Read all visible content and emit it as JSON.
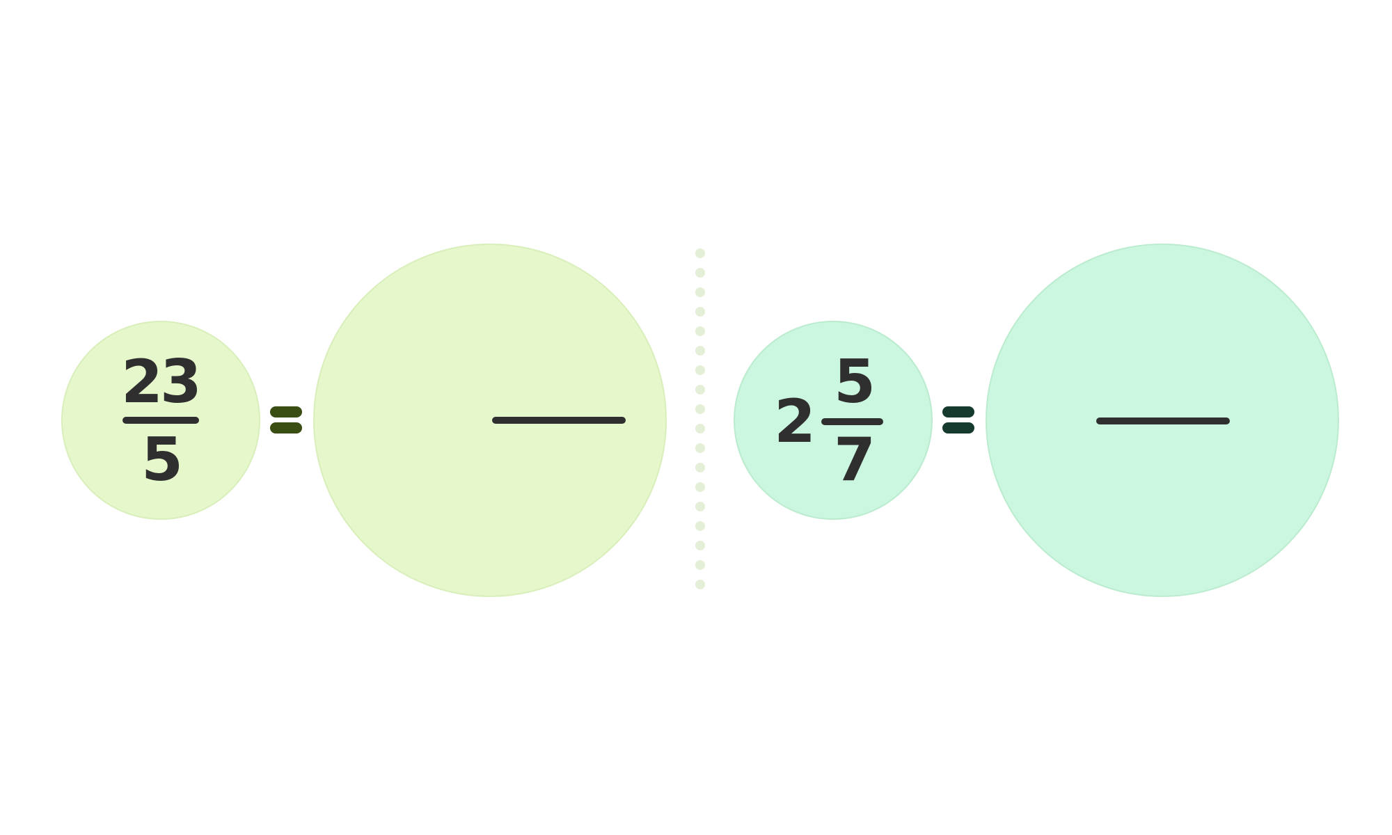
{
  "left_problem": {
    "numerator": "23",
    "denominator": "5"
  },
  "right_problem": {
    "whole": "2",
    "numerator": "5",
    "denominator": "7"
  },
  "colors": {
    "left_circle": "#e6f7cb",
    "right_circle": "#cbf6df",
    "left_equals": "#3a4d12",
    "right_equals": "#173a2e",
    "ink": "#2f2f2f",
    "divider_dots": "#e3efd6"
  },
  "icons": {
    "equals": "equals-icon",
    "divider": "dotted-divider"
  }
}
